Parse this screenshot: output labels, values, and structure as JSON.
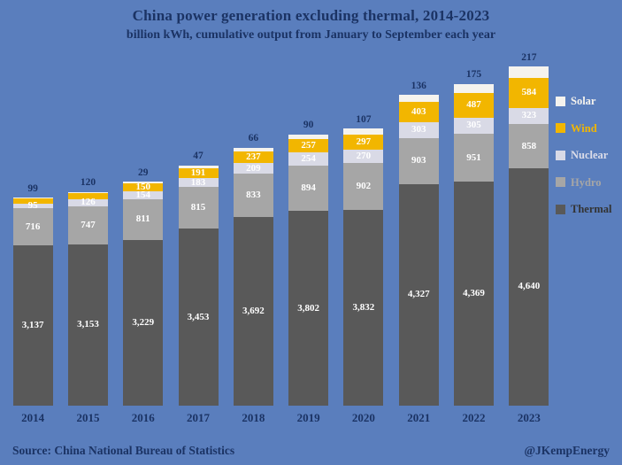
{
  "title": "China power generation excluding thermal, 2014-2023",
  "subtitle": "billion kWh, cumulative output from January to September each year",
  "footer": {
    "source": "Source: China National Bureau of Statistics",
    "credit": "@JKempEnergy"
  },
  "colors": {
    "background": "#5a7ebd",
    "heading": "#1b3364"
  },
  "legend": [
    {
      "label": "Solar",
      "color": "#f5f3ee",
      "text_color": "#f5f3ee"
    },
    {
      "label": "Wind",
      "color": "#f2b600",
      "text_color": "#f2b600"
    },
    {
      "label": "Nuclear",
      "color": "#d9dae6",
      "text_color": "#dcdde9"
    },
    {
      "label": "Hydro",
      "color": "#a6a6a6",
      "text_color": "#a6a6a6"
    },
    {
      "label": "Thermal",
      "color": "#595959",
      "text_color": "#333333"
    }
  ],
  "chart_data": {
    "type": "bar",
    "stacked": true,
    "title": "China power generation excluding thermal, 2014-2023",
    "subtitle": "billion kWh, cumulative output from January to September each year",
    "categories": [
      "2014",
      "2015",
      "2016",
      "2017",
      "2018",
      "2019",
      "2020",
      "2021",
      "2022",
      "2023"
    ],
    "series": [
      {
        "name": "Thermal",
        "color": "#595959",
        "label_color": "#ffffff",
        "values": [
          3137,
          3153,
          3229,
          3453,
          3692,
          3802,
          3832,
          4327,
          4369,
          4640
        ],
        "labels": [
          "3,137",
          "3,153",
          "3,229",
          "3,453",
          "3,692",
          "3,802",
          "3,832",
          "4,327",
          "4,369",
          "4,640"
        ]
      },
      {
        "name": "Hydro",
        "color": "#a6a6a6",
        "label_color": "#ffffff",
        "values": [
          716,
          747,
          811,
          815,
          833,
          894,
          902,
          903,
          951,
          858
        ],
        "labels": [
          "716",
          "747",
          "811",
          "815",
          "833",
          "894",
          "902",
          "903",
          "951",
          "858"
        ]
      },
      {
        "name": "Nuclear",
        "color": "#d9dae6",
        "label_color": "#ffffff",
        "values": [
          95,
          126,
          154,
          183,
          209,
          254,
          270,
          303,
          305,
          323
        ],
        "labels": [
          "95",
          "126",
          "154",
          "183",
          "209",
          "254",
          "270",
          "303",
          "305",
          "323"
        ]
      },
      {
        "name": "Wind",
        "color": "#f2b600",
        "label_color": "#ffffff",
        "values": [
          99,
          120,
          150,
          191,
          237,
          257,
          297,
          403,
          487,
          584
        ],
        "labels": [
          "",
          "",
          "150",
          "191",
          "237",
          "257",
          "297",
          "403",
          "487",
          "584"
        ]
      },
      {
        "name": "Solar",
        "color": "#f5f3ee",
        "label_color": "#1b3364",
        "values": [
          17,
          24,
          29,
          47,
          66,
          90,
          107,
          136,
          175,
          217
        ],
        "labels": [
          "",
          "",
          "",
          "",
          "",
          "",
          "",
          "",
          "",
          ""
        ]
      }
    ],
    "above_bar_labels": [
      "99",
      "120",
      "29",
      "47",
      "66",
      "90",
      "107",
      "136",
      "175",
      "217"
    ],
    "y_axis": {
      "visible": false,
      "range": [
        0,
        6700
      ]
    },
    "legend_position": "right"
  }
}
